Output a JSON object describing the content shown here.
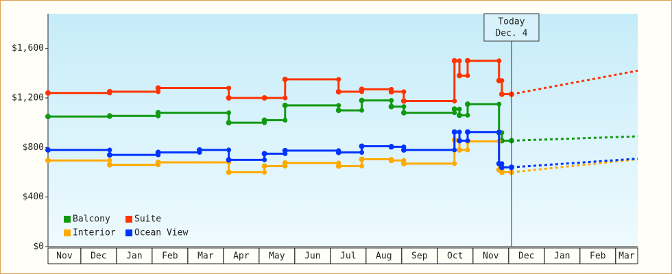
{
  "chart_data": {
    "type": "step-line",
    "categories": [
      "Nov",
      "Dec",
      "Jan",
      "Feb",
      "Mar",
      "Apr",
      "May",
      "Jun",
      "Jul",
      "Aug",
      "Sep",
      "Oct",
      "Nov",
      "Dec",
      "Jan",
      "Feb",
      "Mar"
    ],
    "xlim": [
      0.08,
      16.62
    ],
    "ylim": [
      0,
      1880
    ],
    "yticks": [
      {
        "value": 0,
        "label": "$0"
      },
      {
        "value": 400,
        "label": "$400"
      },
      {
        "value": 800,
        "label": "$800"
      },
      {
        "value": 1200,
        "label": "$1,200"
      },
      {
        "value": 1600,
        "label": "$1,600"
      }
    ],
    "grid": false,
    "legend": "lower left",
    "today": {
      "x": 13.08,
      "label": "Today",
      "date": "Dec. 4"
    },
    "series": [
      {
        "name": "Balcony",
        "color": "#119911",
        "x": [
          0.08,
          1.81,
          3.17,
          5.15,
          6.15,
          6.73,
          8.23,
          8.88,
          9.71,
          10.06,
          11.48,
          11.62,
          11.85,
          12.73,
          12.81,
          13.08
        ],
        "values": [
          1050,
          1055,
          1080,
          1000,
          1020,
          1140,
          1100,
          1180,
          1130,
          1080,
          1110,
          1060,
          1150,
          920,
          855,
          855
        ],
        "forecast": {
          "x": [
            13.08,
            16.62
          ],
          "values": [
            855,
            890
          ]
        }
      },
      {
        "name": "Suite",
        "color": "#ff3300",
        "x": [
          0.08,
          1.81,
          3.17,
          5.15,
          6.15,
          6.73,
          8.23,
          8.88,
          9.71,
          10.06,
          11.48,
          11.62,
          11.85,
          12.73,
          12.81,
          13.08
        ],
        "values": [
          1240,
          1250,
          1280,
          1200,
          1200,
          1350,
          1250,
          1270,
          1250,
          1175,
          1500,
          1380,
          1500,
          1340,
          1230,
          1230
        ],
        "forecast": {
          "x": [
            13.08,
            16.62
          ],
          "values": [
            1230,
            1420
          ]
        }
      },
      {
        "name": "Interior",
        "color": "#ffaa00",
        "x": [
          0.08,
          1.81,
          3.17,
          5.15,
          6.15,
          6.73,
          8.23,
          8.88,
          9.71,
          10.06,
          11.48,
          11.62,
          11.85,
          12.73,
          12.81,
          13.08
        ],
        "values": [
          695,
          660,
          680,
          600,
          650,
          675,
          650,
          705,
          695,
          670,
          860,
          780,
          850,
          620,
          600,
          600
        ],
        "forecast": {
          "x": [
            13.08,
            16.62
          ],
          "values": [
            600,
            705
          ]
        }
      },
      {
        "name": "Ocean View",
        "color": "#0033ff",
        "x": [
          0.08,
          1.81,
          3.17,
          4.33,
          5.15,
          6.15,
          6.73,
          8.23,
          8.88,
          9.71,
          10.06,
          11.48,
          11.62,
          11.85,
          12.73,
          12.81,
          13.08
        ],
        "values": [
          780,
          740,
          760,
          780,
          700,
          750,
          775,
          760,
          810,
          805,
          780,
          925,
          855,
          925,
          670,
          640,
          640
        ],
        "forecast": {
          "x": [
            13.08,
            16.62
          ],
          "values": [
            640,
            710
          ]
        }
      }
    ]
  }
}
